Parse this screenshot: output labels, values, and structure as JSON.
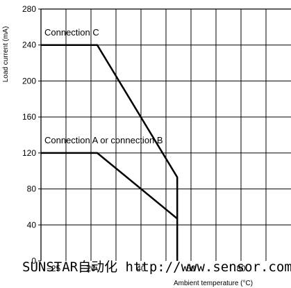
{
  "chart_data": {
    "type": "line",
    "xlabel": "Ambient temperature (°C)",
    "ylabel": "Load current (mA)",
    "xlim": [
      -30,
      70
    ],
    "ylim": [
      0,
      280
    ],
    "x_gridlines": [
      -30,
      -20,
      -10,
      0,
      10,
      20,
      30,
      40,
      50,
      60,
      70
    ],
    "y_ticks": [
      0,
      40,
      80,
      120,
      160,
      200,
      240,
      280
    ],
    "x_tick_labels": [
      "−25",
      "20",
      "40",
      "60",
      "80"
    ],
    "grid": true,
    "series": [
      {
        "name": "Connection C",
        "x": [
          -30,
          -7.5,
          24.5,
          24.5
        ],
        "y": [
          240,
          240,
          93,
          0
        ]
      },
      {
        "name": "Connection A or connection B",
        "x": [
          -30,
          -7.5,
          24.5
        ],
        "y": [
          120,
          120,
          47
        ]
      }
    ]
  },
  "watermark": "SUNSTAR自动化 http://www.sensor.com"
}
